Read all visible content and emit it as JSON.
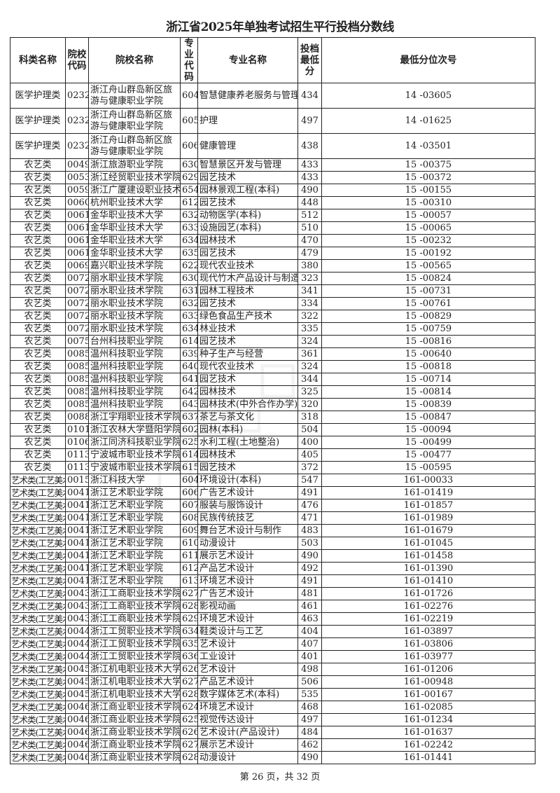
{
  "title": "浙江省2025年单独考试招生平行投档分数线",
  "headers": [
    "科类名称",
    "院校代码",
    "院校名称",
    "专业代码",
    "专业名称",
    "投档最低分",
    "最低分位次号"
  ],
  "rows": [
    [
      "医学护理类",
      "0232",
      "浙江舟山群岛新区旅游与健康职业学院",
      "604",
      "智慧健康养老服务与管理",
      "434",
      "14 -03605"
    ],
    [
      "医学护理类",
      "0232",
      "浙江舟山群岛新区旅游与健康职业学院",
      "605",
      "护理",
      "497",
      "14 -01625"
    ],
    [
      "医学护理类",
      "0232",
      "浙江舟山群岛新区旅游与健康职业学院",
      "606",
      "健康管理",
      "438",
      "14 -03501"
    ],
    [
      "农艺类",
      "0049",
      "浙江旅游职业学院",
      "630",
      "智慧景区开发与管理",
      "433",
      "15 -00375"
    ],
    [
      "农艺类",
      "0053",
      "浙江经贸职业技术学院",
      "629",
      "园艺技术",
      "433",
      "15 -00372"
    ],
    [
      "农艺类",
      "0059",
      "浙江广厦建设职业技术大学",
      "654",
      "园林景观工程(本科)",
      "490",
      "15 -00155"
    ],
    [
      "农艺类",
      "0060",
      "杭州职业技术大学",
      "612",
      "园艺技术",
      "448",
      "15 -00310"
    ],
    [
      "农艺类",
      "0061",
      "金华职业技术大学",
      "632",
      "动物医学(本科)",
      "512",
      "15 -00057"
    ],
    [
      "农艺类",
      "0061",
      "金华职业技术大学",
      "633",
      "设施园艺(本科)",
      "510",
      "15 -00065"
    ],
    [
      "农艺类",
      "0061",
      "金华职业技术大学",
      "634",
      "园林技术",
      "470",
      "15 -00232"
    ],
    [
      "农艺类",
      "0061",
      "金华职业技术大学",
      "635",
      "园艺技术",
      "479",
      "15 -00192"
    ],
    [
      "农艺类",
      "0069",
      "嘉兴职业技术学院",
      "622",
      "现代农业技术",
      "380",
      "15 -00565"
    ],
    [
      "农艺类",
      "0072",
      "丽水职业技术学院",
      "630",
      "现代竹木产品设计与制造",
      "323",
      "15 -00824"
    ],
    [
      "农艺类",
      "0072",
      "丽水职业技术学院",
      "631",
      "园林工程技术",
      "341",
      "15 -00731"
    ],
    [
      "农艺类",
      "0072",
      "丽水职业技术学院",
      "632",
      "园艺技术",
      "334",
      "15 -00761"
    ],
    [
      "农艺类",
      "0072",
      "丽水职业技术学院",
      "633",
      "绿色食品生产技术",
      "322",
      "15 -00829"
    ],
    [
      "农艺类",
      "0072",
      "丽水职业技术学院",
      "634",
      "林业技术",
      "335",
      "15 -00759"
    ],
    [
      "农艺类",
      "0075",
      "台州科技职业学院",
      "614",
      "园艺技术",
      "324",
      "15 -00816"
    ],
    [
      "农艺类",
      "0085",
      "温州科技职业学院",
      "639",
      "种子生产与经营",
      "361",
      "15 -00640"
    ],
    [
      "农艺类",
      "0085",
      "温州科技职业学院",
      "640",
      "现代农业技术",
      "324",
      "15 -00818"
    ],
    [
      "农艺类",
      "0085",
      "温州科技职业学院",
      "641",
      "园艺技术",
      "344",
      "15 -00714"
    ],
    [
      "农艺类",
      "0085",
      "温州科技职业学院",
      "642",
      "园林技术",
      "325",
      "15 -00814"
    ],
    [
      "农艺类",
      "0085",
      "温州科技职业学院",
      "643",
      "园林技术(中外合作办学)",
      "320",
      "15 -00839"
    ],
    [
      "农艺类",
      "0088",
      "浙江宇翔职业技术学院",
      "637",
      "茶艺与茶文化",
      "318",
      "15 -00847"
    ],
    [
      "农艺类",
      "0101",
      "浙江农林大学暨阳学院",
      "602",
      "园林(本科)",
      "504",
      "15 -00094"
    ],
    [
      "农艺类",
      "0106",
      "浙江同济科技职业学院",
      "625",
      "水利工程(土地整治)",
      "400",
      "15 -00499"
    ],
    [
      "农艺类",
      "0113",
      "宁波城市职业技术学院",
      "614",
      "园林技术",
      "405",
      "15 -00477"
    ],
    [
      "农艺类",
      "0113",
      "宁波城市职业技术学院",
      "615",
      "园艺技术",
      "372",
      "15 -00595"
    ],
    [
      "艺术类(工艺美术)",
      "0015",
      "浙江科技大学",
      "604",
      "环境设计(本科)",
      "547",
      "161-00033"
    ],
    [
      "艺术类(工艺美术)",
      "0041",
      "浙江艺术职业学院",
      "606",
      "广告艺术设计",
      "491",
      "161-01419"
    ],
    [
      "艺术类(工艺美术)",
      "0041",
      "浙江艺术职业学院",
      "607",
      "服装与服饰设计",
      "476",
      "161-01857"
    ],
    [
      "艺术类(工艺美术)",
      "0041",
      "浙江艺术职业学院",
      "608",
      "民族传统技艺",
      "471",
      "161-01989"
    ],
    [
      "艺术类(工艺美术)",
      "0041",
      "浙江艺术职业学院",
      "609",
      "舞台艺术设计与制作",
      "483",
      "161-01679"
    ],
    [
      "艺术类(工艺美术)",
      "0041",
      "浙江艺术职业学院",
      "610",
      "动漫设计",
      "503",
      "161-01045"
    ],
    [
      "艺术类(工艺美术)",
      "0041",
      "浙江艺术职业学院",
      "611",
      "展示艺术设计",
      "490",
      "161-01458"
    ],
    [
      "艺术类(工艺美术)",
      "0041",
      "浙江艺术职业学院",
      "612",
      "产品艺术设计",
      "492",
      "161-01390"
    ],
    [
      "艺术类(工艺美术)",
      "0041",
      "浙江艺术职业学院",
      "613",
      "环境艺术设计",
      "491",
      "161-01410"
    ],
    [
      "艺术类(工艺美术)",
      "0043",
      "浙江工商职业技术学院",
      "627",
      "广告艺术设计",
      "481",
      "161-01726"
    ],
    [
      "艺术类(工艺美术)",
      "0043",
      "浙江工商职业技术学院",
      "628",
      "影视动画",
      "461",
      "161-02276"
    ],
    [
      "艺术类(工艺美术)",
      "0043",
      "浙江工商职业技术学院",
      "629",
      "环境艺术设计",
      "463",
      "161-02219"
    ],
    [
      "艺术类(工艺美术)",
      "0044",
      "浙江工贸职业技术学院",
      "634",
      "鞋类设计与工艺",
      "404",
      "161-03897"
    ],
    [
      "艺术类(工艺美术)",
      "0044",
      "浙江工贸职业技术学院",
      "635",
      "艺术设计",
      "407",
      "161-03806"
    ],
    [
      "艺术类(工艺美术)",
      "0044",
      "浙江工贸职业技术学院",
      "636",
      "工业设计",
      "401",
      "161-03977"
    ],
    [
      "艺术类(工艺美术)",
      "0045",
      "浙江机电职业技术大学",
      "626",
      "艺术设计",
      "498",
      "161-01206"
    ],
    [
      "艺术类(工艺美术)",
      "0045",
      "浙江机电职业技术大学",
      "627",
      "产品艺术设计",
      "506",
      "161-00948"
    ],
    [
      "艺术类(工艺美术)",
      "0045",
      "浙江机电职业技术大学",
      "628",
      "数字媒体艺术(本科)",
      "535",
      "161-00167"
    ],
    [
      "艺术类(工艺美术)",
      "0046",
      "浙江商业职业技术学院",
      "624",
      "环境艺术设计",
      "468",
      "161-02085"
    ],
    [
      "艺术类(工艺美术)",
      "0046",
      "浙江商业职业技术学院",
      "625",
      "视觉传达设计",
      "497",
      "161-01234"
    ],
    [
      "艺术类(工艺美术)",
      "0046",
      "浙江商业职业技术学院",
      "626",
      "艺术设计(产品设计)",
      "484",
      "161-01637"
    ],
    [
      "艺术类(工艺美术)",
      "0046",
      "浙江商业职业技术学院",
      "627",
      "展示艺术设计",
      "462",
      "161-02242"
    ],
    [
      "艺术类(工艺美术)",
      "0046",
      "浙江商业职业技术学院",
      "628",
      "动漫设计",
      "490",
      "161-01441"
    ]
  ],
  "footer": "第 26 页，共 32 页"
}
